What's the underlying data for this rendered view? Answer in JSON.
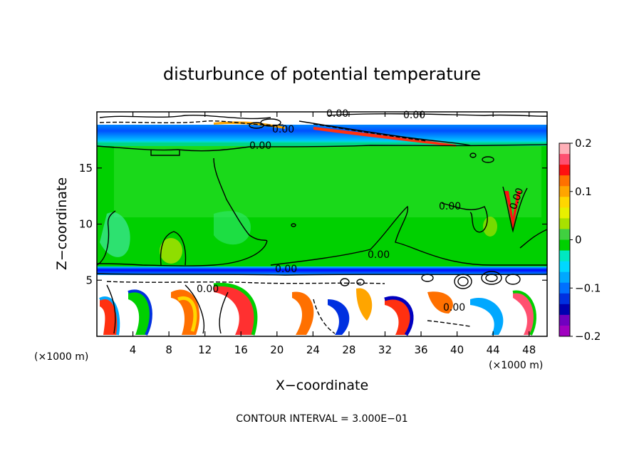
{
  "chart_data": {
    "type": "heatmap",
    "title": "disturbunce of potential temperature",
    "xlabel": "X−coordinate",
    "ylabel": "Z−coordinate",
    "x_unit": "(×1000 m)",
    "y_unit": "(×1000 m)",
    "xlim": [
      0,
      50
    ],
    "ylim": [
      0,
      20
    ],
    "x_ticks": [
      4,
      8,
      12,
      16,
      20,
      24,
      28,
      32,
      36,
      40,
      44,
      48
    ],
    "x_tick_labels": [
      "4",
      "8",
      "12",
      "16",
      "20",
      "24",
      "28",
      "32",
      "36",
      "40",
      "44",
      "48"
    ],
    "y_ticks": [
      5,
      10,
      15
    ],
    "y_tick_labels": [
      "5",
      "10",
      "15"
    ],
    "colorbar": {
      "min": -0.2,
      "max": 0.2,
      "tick_values": [
        0.2,
        0.1,
        0,
        -0.1,
        -0.2
      ],
      "tick_labels": [
        "0.2",
        "0.1",
        "0",
        "−0.1",
        "−0.2"
      ],
      "colors": [
        "#ffb0b8",
        "#ff5070",
        "#ff1010",
        "#ff7000",
        "#ffa500",
        "#ffd700",
        "#e8f000",
        "#a8e000",
        "#40d040",
        "#00d000",
        "#00e8c0",
        "#00d8ff",
        "#00a8ff",
        "#0070ff",
        "#0030e0",
        "#0000b0",
        "#7000c0",
        "#a000c0"
      ]
    },
    "contour_labels": [
      "0.00",
      "0.00",
      "0.00",
      "0.00",
      "0.00",
      "0.00",
      "0.00",
      "0.00",
      "0.00",
      "0.00"
    ],
    "contour_interval": "CONTOUR INTERVAL = 3.000E−01"
  }
}
